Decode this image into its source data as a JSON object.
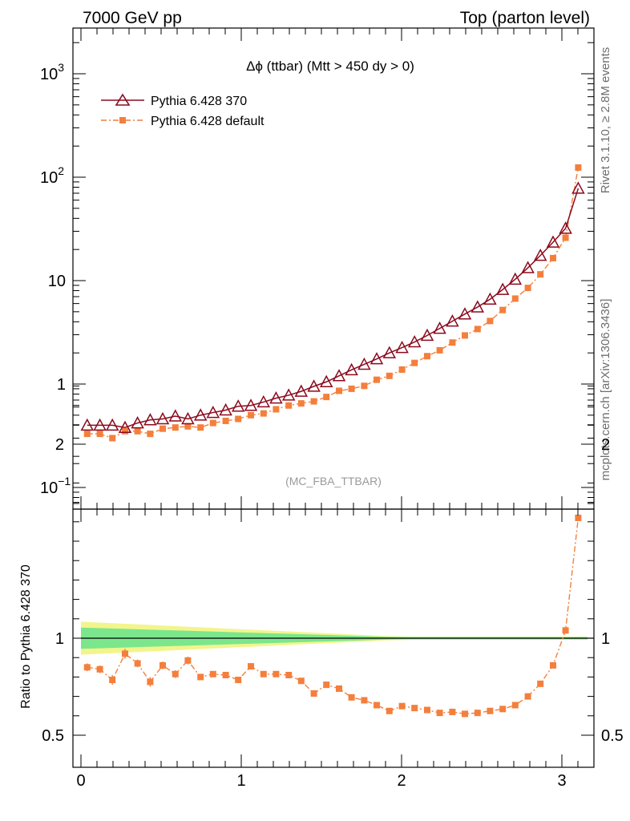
{
  "header": {
    "left": "7000 GeV pp",
    "right": "Top (parton level)"
  },
  "side": {
    "rivet": "Rivet 3.1.10, ≥ 2.8M events",
    "mcplots": "mcplots.cern.ch [arXiv:1306.3436]"
  },
  "colors": {
    "pythia370": "#8b0a1e",
    "pythiaDefault": "#f47f3c",
    "bandInner": "#7ce68c",
    "bandOuter": "#f2f58c"
  },
  "chart_data": [
    {
      "type": "line",
      "title": "Δϕ (ttbar) (Mtt > 450 dy > 0)",
      "watermark": "(MC_FBA_TTBAR)",
      "yscale": "log",
      "xlim": [
        -0.05,
        3.2
      ],
      "ylim": [
        0.08,
        3000
      ],
      "yticks": [
        {
          "v": 0.1,
          "base": "10",
          "exp": "−1"
        },
        {
          "v": 1,
          "base": "1",
          "exp": ""
        },
        {
          "v": 10,
          "base": "10",
          "exp": ""
        },
        {
          "v": 100,
          "base": "10",
          "exp": "2"
        },
        {
          "v": 1000,
          "base": "10",
          "exp": "3"
        }
      ],
      "legend_position": "top-left",
      "x": [
        0.039,
        0.118,
        0.196,
        0.275,
        0.353,
        0.432,
        0.51,
        0.589,
        0.667,
        0.746,
        0.824,
        0.903,
        0.981,
        1.06,
        1.139,
        1.217,
        1.296,
        1.374,
        1.453,
        1.531,
        1.61,
        1.688,
        1.767,
        1.845,
        1.924,
        2.003,
        2.081,
        2.16,
        2.238,
        2.317,
        2.395,
        2.474,
        2.552,
        2.631,
        2.709,
        2.788,
        2.866,
        2.945,
        3.023,
        3.102
      ],
      "series": [
        {
          "name": "Pythia 6.428 370",
          "marker": "open-triangle",
          "values": [
            0.4,
            0.4,
            0.4,
            0.38,
            0.42,
            0.45,
            0.46,
            0.49,
            0.46,
            0.5,
            0.53,
            0.56,
            0.61,
            0.62,
            0.67,
            0.73,
            0.78,
            0.85,
            0.95,
            1.05,
            1.2,
            1.37,
            1.55,
            1.75,
            2.0,
            2.25,
            2.55,
            2.95,
            3.45,
            4.05,
            4.75,
            5.55,
            6.6,
            8.2,
            10.3,
            13.3,
            17.5,
            23.5,
            32.0,
            47.0
          ]
        },
        {
          "name": "Pythia 6.428 default",
          "marker": "filled-square",
          "values": [
            0.33,
            0.33,
            0.3,
            0.35,
            0.35,
            0.33,
            0.37,
            0.38,
            0.39,
            0.38,
            0.42,
            0.44,
            0.46,
            0.5,
            0.52,
            0.57,
            0.62,
            0.65,
            0.68,
            0.75,
            0.86,
            0.9,
            0.96,
            1.1,
            1.2,
            1.38,
            1.6,
            1.86,
            2.12,
            2.52,
            2.95,
            3.4,
            4.07,
            5.2,
            6.7,
            8.5,
            11.5,
            16.5,
            26.0,
            49.0
          ]
        }
      ],
      "extra_points": [
        {
          "series": "Pythia 6.428 370",
          "x": 3.102,
          "y": 78.0
        },
        {
          "series": "Pythia 6.428 default",
          "x": 3.102,
          "y": 124.0
        }
      ]
    },
    {
      "type": "line",
      "ylabel": "Ratio to Pythia 6.428 370",
      "xlim": [
        -0.05,
        3.2
      ],
      "ylim": [
        0.4,
        2.4
      ],
      "xticks": [
        "0",
        "1",
        "2",
        "3"
      ],
      "xtick_values": [
        0,
        1,
        2,
        3
      ],
      "yticks": [
        "0.5",
        "1",
        "2"
      ],
      "ytick_values": [
        0.5,
        1,
        2
      ],
      "reference_line": 1,
      "band_inner": [
        0.945,
        1.055
      ],
      "band_outer": [
        0.915,
        1.085
      ],
      "series": [
        {
          "name": "Pythia 6.428 default",
          "x": [
            0.039,
            0.118,
            0.196,
            0.275,
            0.353,
            0.432,
            0.51,
            0.589,
            0.667,
            0.746,
            0.824,
            0.903,
            0.981,
            1.06,
            1.139,
            1.217,
            1.296,
            1.374,
            1.453,
            1.531,
            1.61,
            1.688,
            1.767,
            1.845,
            1.924,
            2.003,
            2.081,
            2.16,
            2.238,
            2.317,
            2.395,
            2.474,
            2.552,
            2.631,
            2.709,
            2.788,
            2.866,
            2.945,
            3.023,
            3.102
          ],
          "values": [
            0.85,
            0.84,
            0.785,
            0.92,
            0.87,
            0.775,
            0.86,
            0.815,
            0.885,
            0.8,
            0.815,
            0.81,
            0.785,
            0.855,
            0.815,
            0.815,
            0.81,
            0.78,
            0.715,
            0.76,
            0.74,
            0.695,
            0.68,
            0.655,
            0.625,
            0.65,
            0.64,
            0.63,
            0.615,
            0.62,
            0.61,
            0.615,
            0.625,
            0.635,
            0.655,
            0.7,
            0.765,
            0.86,
            1.04,
            1.62
          ],
          "errors": [
            0.02,
            0.02,
            0.025,
            0.025,
            0.02,
            0.025,
            0.02,
            0.02,
            0.02,
            0.015,
            0.015,
            0.015,
            0.015,
            0.015,
            0.012,
            0.012,
            0.012,
            0.012,
            0.012,
            0.01,
            0.01,
            0.01,
            0.008,
            0.008,
            0.008,
            0.008,
            0.007,
            0.007,
            0.007,
            0.006,
            0.006,
            0.006,
            0.006,
            0.006,
            0.005,
            0.005,
            0.005,
            0.005,
            0.005,
            0.005
          ]
        }
      ]
    }
  ]
}
